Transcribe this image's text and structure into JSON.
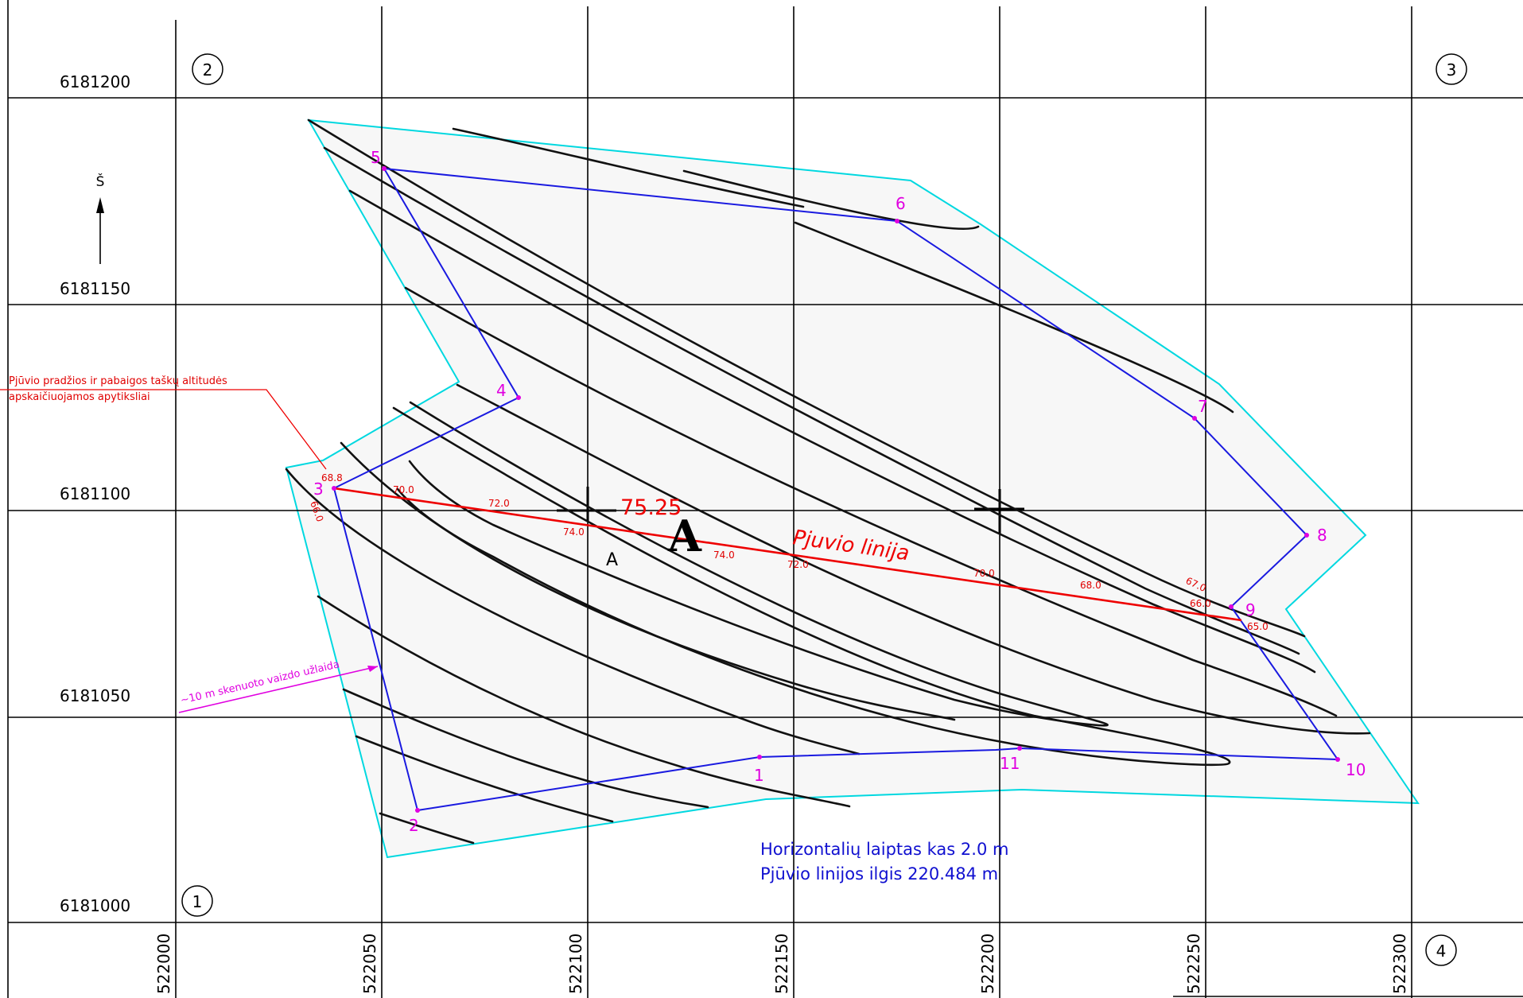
{
  "map": {
    "x_labels": [
      "522000",
      "522050",
      "522100",
      "522150",
      "522200",
      "522250",
      "522300"
    ],
    "y_labels": [
      "6181200",
      "6181150",
      "6181100",
      "6181050",
      "6181000"
    ],
    "sheet_numbers": [
      "1",
      "2",
      "3",
      "4"
    ],
    "north_label": "Š",
    "section_label": "Pjuvio linija",
    "peak_elevation": "75.25",
    "peak_marker": "A",
    "section_mark": "A",
    "point_ids": [
      "1",
      "2",
      "3",
      "4",
      "5",
      "6",
      "7",
      "8",
      "9",
      "10",
      "11"
    ],
    "elevations": [
      "68.8",
      "70.0",
      "72.0",
      "74.0",
      "74.0",
      "72.0",
      "70.0",
      "68.0",
      "66.0",
      "65.0",
      "66.0",
      "67.0"
    ],
    "note_line1": "Pjūvio pradžios ir pabaigos taškų altitudės",
    "note_line2": "apskaičiuojamos apytiksliai",
    "scan_note": "~10 m skenuoto vaizdo užlaida",
    "contour_interval": "Horizontalių laiptas kas 2.0 m",
    "section_length": "Pjūvio linijos ilgis  220.484 m",
    "colors": {
      "grid": "#000000",
      "contour": "#111111",
      "boundary": "#00d8e0",
      "traverse": "#1a1ae0",
      "section": "#ee0000",
      "points": "#e000e0",
      "info_text": "#1010d0",
      "area_fill": "#f7f7f7"
    }
  }
}
